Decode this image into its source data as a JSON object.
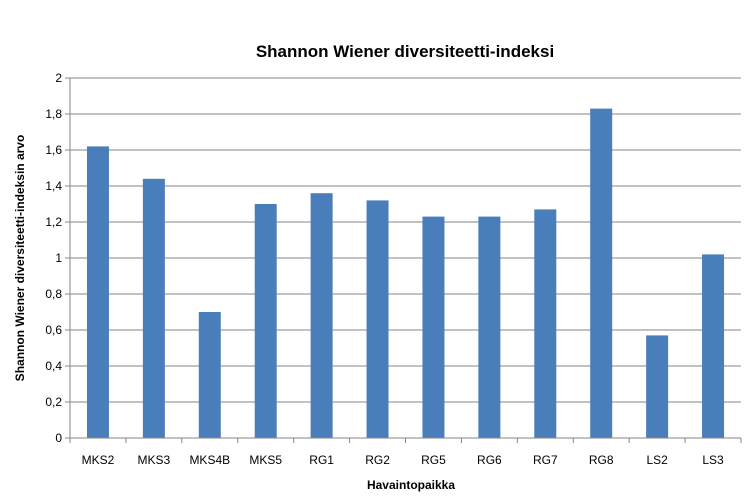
{
  "chart_data": {
    "type": "bar",
    "title": "Shannon Wiener diversiteetti-indeksi",
    "xlabel": "Havaintopaikka",
    "ylabel": "Shannon Wiener diversiteetti-indeksin arvo",
    "categories": [
      "MKS2",
      "MKS3",
      "MKS4B",
      "MKS5",
      "RG1",
      "RG2",
      "RG5",
      "RG6",
      "RG7",
      "RG8",
      "LS2",
      "LS3"
    ],
    "values": [
      1.62,
      1.44,
      0.7,
      1.3,
      1.36,
      1.32,
      1.23,
      1.23,
      1.27,
      1.83,
      0.57,
      1.02
    ],
    "ylim": [
      0,
      2
    ],
    "yticks": [
      "0",
      "0,2",
      "0,4",
      "0,6",
      "0,8",
      "1",
      "1,2",
      "1,4",
      "1,6",
      "1,8",
      "2"
    ],
    "grid": true,
    "legend": "none",
    "bar_color": "#4a7ebb"
  }
}
